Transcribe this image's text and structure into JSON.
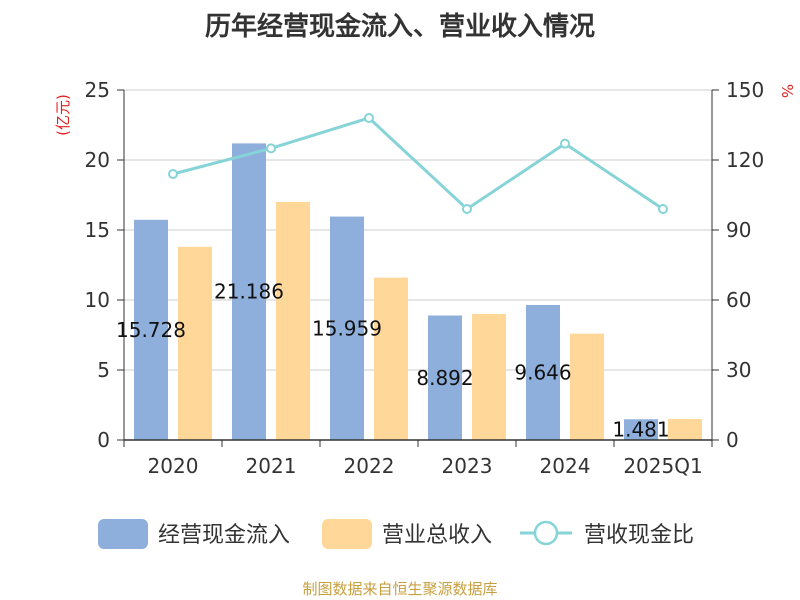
{
  "chart_data": {
    "type": "bar",
    "title": "历年经营现金流入、营业收入情况",
    "categories": [
      "2020",
      "2021",
      "2022",
      "2023",
      "2024",
      "2025Q1"
    ],
    "series": [
      {
        "name": "经营现金流入",
        "kind": "bar",
        "axis": "left",
        "color": "#8EAEDB",
        "values": [
          15.728,
          21.186,
          15.959,
          8.892,
          9.646,
          1.481
        ]
      },
      {
        "name": "营业总收入",
        "kind": "bar",
        "axis": "left",
        "color": "#FFD899",
        "values": [
          13.8,
          17.0,
          11.6,
          9.0,
          7.6,
          1.5
        ]
      },
      {
        "name": "营收现金比",
        "kind": "line",
        "axis": "right",
        "color": "#86D3D8",
        "values": [
          114,
          125,
          138,
          99,
          127,
          99
        ]
      }
    ],
    "y_left": {
      "unit": "(亿元)",
      "ylim": [
        0,
        25
      ],
      "ticks": [
        "0",
        "5",
        "10",
        "15",
        "20",
        "25"
      ]
    },
    "y_right": {
      "unit": "%",
      "ylim": [
        0,
        150
      ],
      "ticks": [
        "0",
        "30",
        "60",
        "90",
        "120",
        "150"
      ]
    },
    "data_labels": [
      "15.728",
      "21.186",
      "15.959",
      "8.892",
      "9.646",
      "1.481"
    ],
    "grid": true,
    "legend_position": "bottom",
    "unit_color": "#E02020"
  },
  "footer": {
    "source": "制图数据来自恒生聚源数据库",
    "color": "#C8A040"
  }
}
